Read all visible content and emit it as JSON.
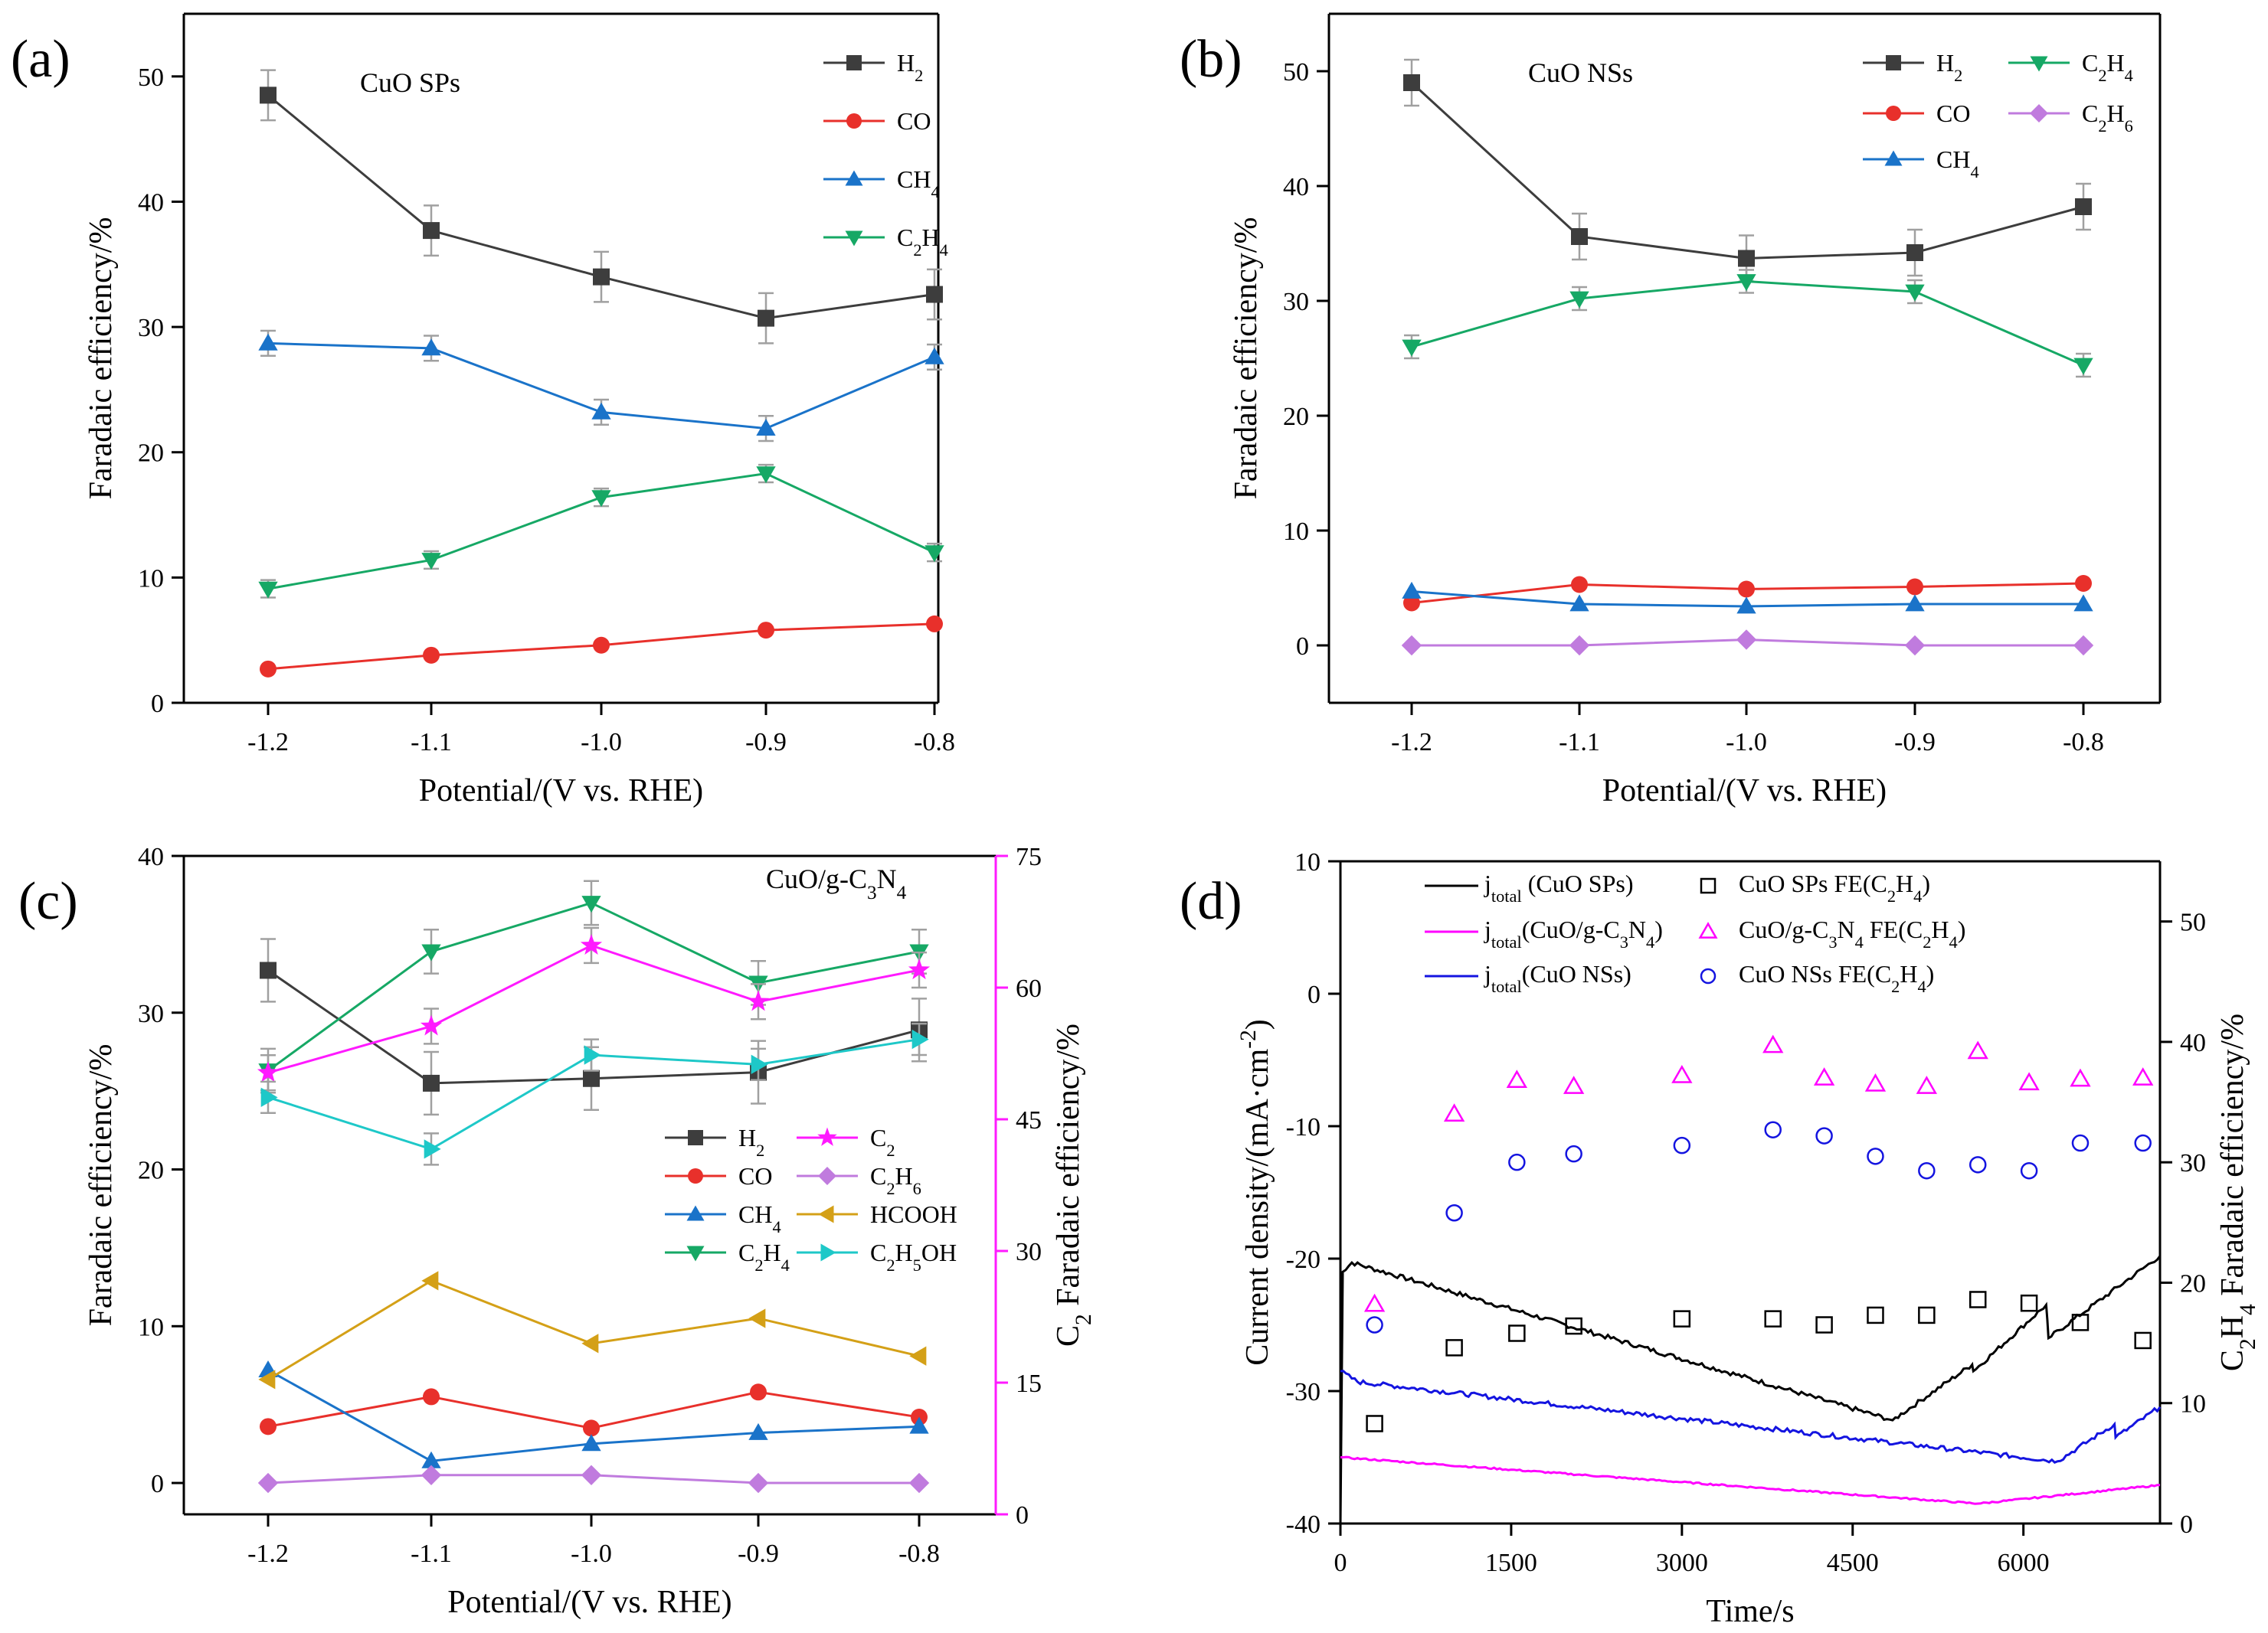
{
  "colors": {
    "H2": "#3d3d3d",
    "CO": "#e8302b",
    "CH4": "#1a73c9",
    "C2H4": "#16a865",
    "C2H6": "#c07bde",
    "C2": "#ff1aff",
    "HCOOH": "#d4a017",
    "C2H5OH": "#1ec8c8",
    "jSP": "#000000",
    "jGC": "#ff00ff",
    "jNS": "#1414e0"
  },
  "chart_data": [
    {
      "panel": "(a)",
      "type": "line",
      "inset_label": "CuO SPs",
      "xlabel": "Potential/(V vs. RHE)",
      "ylabel": "Faradaic efficiency/%",
      "categories": [
        "-1.2",
        "-1.1",
        "-1.0",
        "-0.9",
        "-0.8"
      ],
      "ylim": [
        0,
        55
      ],
      "yticks": [
        "0",
        "10",
        "20",
        "30",
        "40",
        "50"
      ],
      "series": [
        {
          "key": "H2",
          "name": "H",
          "sub": "2",
          "marker": "square",
          "values": [
            48.5,
            37.7,
            34.0,
            30.7,
            32.6
          ],
          "err": [
            2.0,
            2.0,
            2.0,
            2.0,
            2.0
          ]
        },
        {
          "key": "CO",
          "name": "CO",
          "sub": "",
          "marker": "circle",
          "values": [
            2.7,
            3.8,
            4.6,
            5.8,
            6.3
          ],
          "err": [
            0,
            0,
            0,
            0,
            0
          ]
        },
        {
          "key": "CH4",
          "name": "CH",
          "sub": "4",
          "marker": "triangle-up",
          "values": [
            28.7,
            28.3,
            23.2,
            21.9,
            27.6
          ],
          "err": [
            1.0,
            1.0,
            1.0,
            1.0,
            1.0
          ]
        },
        {
          "key": "C2H4",
          "name": "C",
          "sub": "2",
          "name2": "H",
          "sub2": "4",
          "marker": "triangle-down",
          "values": [
            9.1,
            11.4,
            16.4,
            18.3,
            12.0
          ],
          "err": [
            0.7,
            0.7,
            0.7,
            0.7,
            0.7
          ]
        }
      ]
    },
    {
      "panel": "(b)",
      "type": "line",
      "inset_label": "CuO NSs",
      "xlabel": "Potential/(V vs. RHE)",
      "ylabel": "Faradaic efficiency/%",
      "categories": [
        "-1.2",
        "-1.1",
        "-1.0",
        "-0.9",
        "-0.8"
      ],
      "ylim": [
        -5,
        55
      ],
      "yticks": [
        "0",
        "10",
        "20",
        "30",
        "40",
        "50"
      ],
      "series": [
        {
          "key": "H2",
          "name": "H",
          "sub": "2",
          "marker": "square",
          "values": [
            49.0,
            35.6,
            33.7,
            34.2,
            38.2
          ],
          "err": [
            2.0,
            2.0,
            2.0,
            2.0,
            2.0
          ]
        },
        {
          "key": "CO",
          "name": "CO",
          "sub": "",
          "marker": "circle",
          "values": [
            3.7,
            5.3,
            4.9,
            5.1,
            5.4
          ],
          "err": [
            0,
            0,
            0,
            0,
            0
          ]
        },
        {
          "key": "CH4",
          "name": "CH",
          "sub": "4",
          "marker": "triangle-up",
          "values": [
            4.7,
            3.6,
            3.4,
            3.6,
            3.6
          ],
          "err": [
            0,
            0,
            0,
            0,
            0
          ]
        },
        {
          "key": "C2H4",
          "name": "C",
          "sub": "2",
          "name2": "H",
          "sub2": "4",
          "marker": "triangle-down",
          "values": [
            26.0,
            30.2,
            31.7,
            30.8,
            24.4
          ],
          "err": [
            1.0,
            1.0,
            1.0,
            1.0,
            1.0
          ]
        },
        {
          "key": "C2H6",
          "name": "C",
          "sub": "2",
          "name2": "H",
          "sub2": "6",
          "marker": "diamond",
          "values": [
            0.0,
            0.0,
            0.5,
            0.0,
            0.0
          ],
          "err": [
            0,
            0,
            0,
            0,
            0
          ]
        }
      ]
    },
    {
      "panel": "(c)",
      "type": "line",
      "inset_label": "CuO/g-C",
      "inset_sub": "3",
      "inset_tail": "N",
      "inset_sub2": "4",
      "xlabel": "Potential/(V vs. RHE)",
      "ylabel": "Faradaic efficiency/%",
      "y2label_main": "C",
      "y2label_sub": "2",
      "y2label_tail": " Faradaic efficiency/%",
      "categories": [
        "-1.2",
        "-1.1",
        "-1.0",
        "-0.9",
        "-0.8"
      ],
      "ylim": [
        -2,
        40
      ],
      "yticks": [
        "0",
        "10",
        "20",
        "30",
        "40"
      ],
      "y2lim": [
        0,
        75
      ],
      "y2ticks": [
        "0",
        "15",
        "30",
        "45",
        "60",
        "75"
      ],
      "series": [
        {
          "key": "H2",
          "name": "H",
          "sub": "2",
          "marker": "square",
          "values": [
            32.7,
            25.5,
            25.8,
            26.2,
            28.9
          ],
          "err": [
            2.0,
            2.0,
            2.0,
            2.0,
            2.0
          ]
        },
        {
          "key": "CO",
          "name": "CO",
          "sub": "",
          "marker": "circle",
          "values": [
            3.6,
            5.5,
            3.5,
            5.8,
            4.2
          ],
          "err": [
            0,
            0,
            0,
            0,
            0
          ]
        },
        {
          "key": "CH4",
          "name": "CH",
          "sub": "4",
          "marker": "triangle-up",
          "values": [
            7.2,
            1.4,
            2.5,
            3.2,
            3.6
          ],
          "err": [
            0,
            0,
            0,
            0,
            0
          ]
        },
        {
          "key": "C2H4",
          "name": "C",
          "sub": "2",
          "name2": "H",
          "sub2": "4",
          "marker": "triangle-down",
          "values": [
            26.3,
            33.9,
            37.0,
            31.9,
            33.9
          ],
          "err": [
            1.4,
            1.4,
            1.4,
            1.4,
            1.4
          ]
        },
        {
          "key": "C2",
          "name": "C",
          "sub": "2",
          "marker": "star",
          "axis": "right",
          "values": [
            50.3,
            55.6,
            64.8,
            58.4,
            62.0
          ],
          "err": [
            2.0,
            2.0,
            2.0,
            2.0,
            2.0
          ]
        },
        {
          "key": "C2H6",
          "name": "C",
          "sub": "2",
          "name2": "H",
          "sub2": "6",
          "marker": "diamond",
          "values": [
            0.0,
            0.5,
            0.5,
            0.0,
            0.0
          ],
          "err": [
            0,
            0,
            0,
            0,
            0
          ]
        },
        {
          "key": "HCOOH",
          "name": "HCOOH",
          "sub": "",
          "marker": "triangle-left",
          "values": [
            6.6,
            12.9,
            8.9,
            10.5,
            8.1
          ],
          "err": [
            0,
            0,
            0,
            0,
            0
          ]
        },
        {
          "key": "C2H5OH",
          "name": "C",
          "sub": "2",
          "name2": "H",
          "sub2": "5",
          "name3": "OH",
          "marker": "triangle-right",
          "values": [
            24.6,
            21.3,
            27.3,
            26.7,
            28.3
          ],
          "err": [
            1.0,
            1.0,
            1.0,
            1.0,
            1.0
          ]
        }
      ]
    },
    {
      "panel": "(d)",
      "type": "line+scatter",
      "xlabel": "Time/s",
      "ylabel_main": "Current density/(mA·cm",
      "ylabel_sup": "-2",
      "ylabel_tail": ")",
      "y2label_pre": "C",
      "y2label_sub": "2",
      "y2label_mid": "H",
      "y2label_sub2": "4",
      "y2label_tail": " Faradaic efficiency/%",
      "xlim": [
        0,
        7200
      ],
      "xticks": [
        "0",
        "1500",
        "3000",
        "4500",
        "6000"
      ],
      "ylim": [
        -40,
        10
      ],
      "yticks": [
        "-40",
        "-30",
        "-20",
        "-10",
        "0",
        "10"
      ],
      "y2lim": [
        0,
        55
      ],
      "y2ticks": [
        "0",
        "10",
        "20",
        "30",
        "40",
        "50"
      ],
      "legend": {
        "jSP": {
          "pre": "j",
          "sub": "total",
          "post": " (CuO SPs)"
        },
        "jGC": {
          "pre": "j",
          "sub": "total",
          "post": "(CuO/g-C",
          "sub2": "3",
          "post2": "N",
          "sub3": "4",
          "post3": ")"
        },
        "jNS": {
          "pre": "j",
          "sub": "total",
          "post": "(CuO NSs)"
        },
        "fSP": {
          "pre": "CuO SPs FE(C",
          "sub": "2",
          "post": "H",
          "sub2": "4",
          "post2": ")"
        },
        "fGC": {
          "pre": "CuO/g-C",
          "sub": "3",
          "post": "N",
          "sub2": "4",
          "post2": " FE(C",
          "sub3": "2",
          "post3": "H",
          "sub4": "4",
          "post4": ")"
        },
        "fNS": {
          "pre": "CuO NSs FE(C",
          "sub": "2",
          "post": "H",
          "sub2": "4",
          "post2": ")"
        }
      },
      "current_series": [
        {
          "key": "jSP",
          "points": [
            [
              0,
              -40
            ],
            [
              20,
              -21.0
            ],
            [
              100,
              -20.3
            ],
            [
              4850,
              -32.2
            ],
            [
              5550,
              -28.0
            ],
            [
              5560,
              -28.5
            ],
            [
              6200,
              -23.5
            ],
            [
              6220,
              -26.0
            ],
            [
              7200,
              -19.8
            ]
          ]
        },
        {
          "key": "jNS",
          "points": [
            [
              0,
              -28.5
            ],
            [
              150,
              -29.3
            ],
            [
              6300,
              -35.3
            ],
            [
              6800,
              -32.5
            ],
            [
              6810,
              -33.5
            ],
            [
              7200,
              -31.2
            ]
          ]
        },
        {
          "key": "jGC",
          "points": [
            [
              0,
              -35.0
            ],
            [
              5600,
              -38.5
            ],
            [
              7200,
              -37.1
            ]
          ]
        }
      ],
      "fe_series": [
        {
          "key": "fSP",
          "marker": "open-square",
          "x": [
            300,
            1000,
            1550,
            2050,
            3000,
            3800,
            4250,
            4700,
            5150,
            5600,
            6050,
            6500,
            7050
          ],
          "values": [
            8.3,
            14.6,
            15.8,
            16.4,
            17.0,
            17.0,
            16.5,
            17.3,
            17.3,
            18.6,
            18.3,
            16.7,
            15.2
          ]
        },
        {
          "key": "fGC",
          "marker": "open-triangle",
          "x": [
            300,
            1000,
            1550,
            2050,
            3000,
            3800,
            4250,
            4700,
            5150,
            5600,
            6050,
            6500,
            7050
          ],
          "values": [
            18.2,
            34.0,
            36.8,
            36.3,
            37.2,
            39.7,
            37.0,
            36.5,
            36.3,
            39.2,
            36.6,
            36.9,
            37.0
          ]
        },
        {
          "key": "fNS",
          "marker": "open-circle",
          "x": [
            300,
            1000,
            1550,
            2050,
            3000,
            3800,
            4250,
            4700,
            5150,
            5600,
            6050,
            6500,
            7050
          ],
          "values": [
            16.5,
            25.8,
            30.0,
            30.7,
            31.4,
            32.7,
            32.2,
            30.5,
            29.3,
            29.8,
            29.3,
            31.6,
            31.6
          ]
        }
      ]
    }
  ]
}
